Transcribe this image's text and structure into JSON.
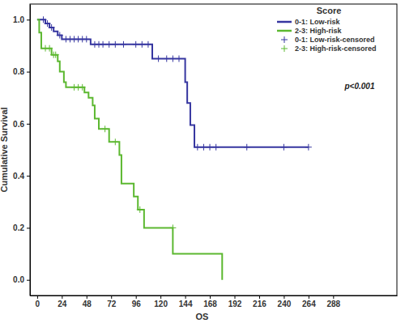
{
  "chart_data": {
    "type": "line",
    "x_label": "OS",
    "y_label": "Cumulative Survival",
    "legend_title": "Score",
    "annotations": [
      "p<0.001"
    ],
    "legend": "top-right",
    "grid": false,
    "xlim": [
      -7,
      350
    ],
    "ylim": [
      -0.06,
      1.06
    ],
    "xticks": [
      0,
      24,
      48,
      72,
      96,
      120,
      144,
      168,
      192,
      216,
      240,
      264,
      288
    ],
    "yticks": [
      {
        "value": 0,
        "label": "0.0"
      },
      {
        "value": 0.2,
        "label": "0.2"
      },
      {
        "value": 0.4,
        "label": "0.4"
      },
      {
        "value": 0.6,
        "label": "0.6"
      },
      {
        "value": 0.8,
        "label": "0.8"
      },
      {
        "value": 1,
        "label": "1.0"
      }
    ],
    "series": [
      {
        "name": "0-1: Low-risk",
        "type": "line",
        "line_style": "step",
        "color": "#3636a0",
        "x": [
          0,
          8,
          12,
          16,
          20,
          24,
          52,
          112,
          144,
          146,
          149,
          153,
          264
        ],
        "values": [
          1.0,
          0.985,
          0.97,
          0.955,
          0.94,
          0.925,
          0.905,
          0.85,
          0.76,
          0.68,
          0.595,
          0.51,
          0.51
        ]
      },
      {
        "name": "2-3: High-risk",
        "type": "line",
        "line_style": "step",
        "color": "#5cb830",
        "x": [
          0,
          2,
          4,
          14,
          20,
          22,
          26,
          28,
          46,
          50,
          54,
          56,
          60,
          70,
          80,
          82,
          94,
          98,
          104,
          132,
          180
        ],
        "values": [
          1.0,
          0.95,
          0.89,
          0.865,
          0.84,
          0.8,
          0.76,
          0.74,
          0.72,
          0.7,
          0.67,
          0.62,
          0.58,
          0.53,
          0.48,
          0.37,
          0.32,
          0.27,
          0.2,
          0.1,
          0.0
        ]
      },
      {
        "name": "0-1: Low-risk-censored",
        "type": "scatter",
        "marker": "plus",
        "color": "#3636a0",
        "x": [
          6,
          10,
          14,
          22,
          28,
          32,
          36,
          40,
          44,
          48,
          56,
          60,
          64,
          70,
          76,
          84,
          96,
          102,
          108,
          118,
          126,
          132,
          138,
          156,
          162,
          168,
          174,
          204,
          240,
          264
        ],
        "values": [
          1.0,
          0.985,
          0.97,
          0.94,
          0.925,
          0.925,
          0.925,
          0.925,
          0.925,
          0.925,
          0.905,
          0.905,
          0.905,
          0.905,
          0.905,
          0.905,
          0.905,
          0.905,
          0.905,
          0.85,
          0.85,
          0.85,
          0.85,
          0.51,
          0.51,
          0.51,
          0.51,
          0.51,
          0.51,
          0.51
        ]
      },
      {
        "name": "2-3: High-risk-censored",
        "type": "scatter",
        "marker": "plus",
        "color": "#5cb830",
        "x": [
          8,
          12,
          16,
          18,
          36,
          40,
          44,
          66,
          76,
          100,
          132
        ],
        "values": [
          0.89,
          0.89,
          0.865,
          0.865,
          0.74,
          0.74,
          0.74,
          0.58,
          0.53,
          0.27,
          0.2
        ]
      }
    ]
  }
}
